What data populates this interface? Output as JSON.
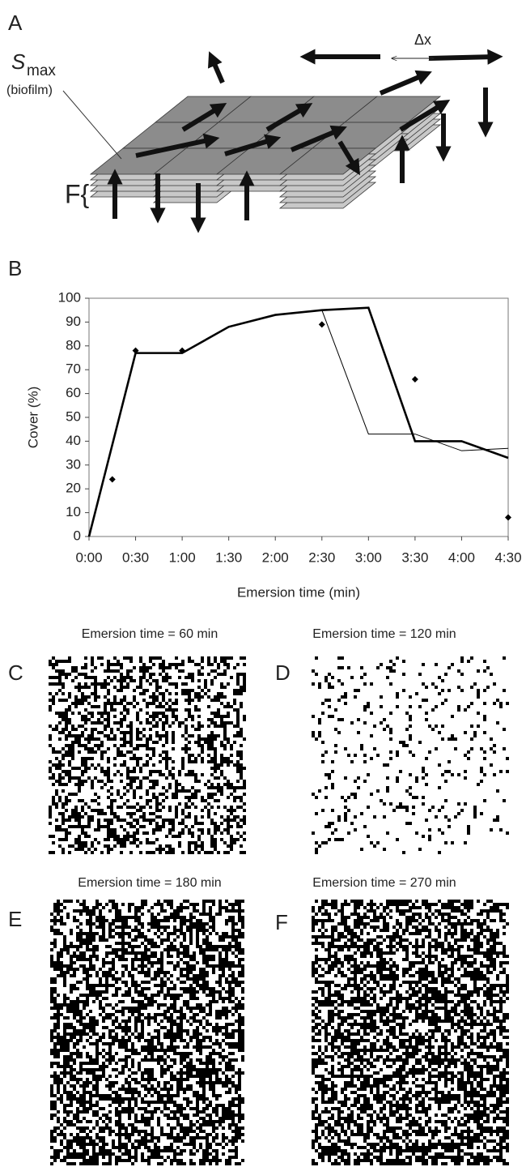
{
  "panel_labels": [
    "A",
    "B",
    "C",
    "D",
    "E",
    "F"
  ],
  "diagram": {
    "s_label": "S",
    "s_sub": "max",
    "s_note": "(biofilm)",
    "dx_label": "Δx",
    "f_label": "F{"
  },
  "chart_data": {
    "type": "line",
    "xlabel": "Emersion time (min)",
    "ylabel": "Cover (%)",
    "xlim": [
      0,
      270
    ],
    "ylim": [
      0,
      100
    ],
    "xticks": [
      {
        "value": 0,
        "label": "0:00"
      },
      {
        "value": 30,
        "label": "0:30"
      },
      {
        "value": 60,
        "label": "1:00"
      },
      {
        "value": 90,
        "label": "1:30"
      },
      {
        "value": 120,
        "label": "2:00"
      },
      {
        "value": 150,
        "label": "2:30"
      },
      {
        "value": 180,
        "label": "3:00"
      },
      {
        "value": 210,
        "label": "3:30"
      },
      {
        "value": 240,
        "label": "4:00"
      },
      {
        "value": 270,
        "label": "4:30"
      }
    ],
    "yticks": [
      0,
      10,
      20,
      30,
      40,
      50,
      60,
      70,
      80,
      90,
      100
    ],
    "series": [
      {
        "style": "thin",
        "color": "#000000",
        "x": [
          0,
          30,
          60,
          90,
          120,
          150,
          180,
          210,
          240,
          270
        ],
        "values": [
          0,
          77,
          77,
          88,
          93,
          95,
          43,
          43,
          36,
          37
        ]
      },
      {
        "style": "thick",
        "color": "#000000",
        "x": [
          0,
          30,
          60,
          90,
          120,
          150,
          180,
          210,
          240,
          270
        ],
        "values": [
          0,
          77,
          77,
          88,
          93,
          95,
          96,
          40,
          40,
          33
        ]
      },
      {
        "style": "markers",
        "color": "#000000",
        "x": [
          15,
          30,
          60,
          150,
          210,
          270
        ],
        "values": [
          24,
          78,
          78,
          89,
          66,
          8
        ]
      }
    ]
  },
  "images": [
    {
      "title": "Emersion time = 60 min"
    },
    {
      "title": "Emersion time = 120 min"
    },
    {
      "title": "Emersion time = 180 min"
    },
    {
      "title": "Emersion time = 270 min"
    }
  ]
}
